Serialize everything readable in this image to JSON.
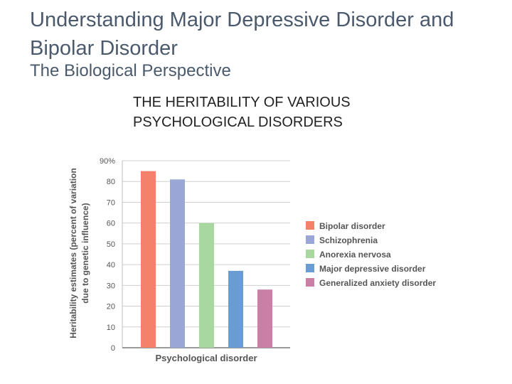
{
  "slide": {
    "title": "Understanding Major Depressive Disorder and Bipolar Disorder",
    "subtitle": "The Biological Perspective"
  },
  "chart_data": {
    "type": "bar",
    "title": "THE HERITABILITY OF VARIOUS PSYCHOLOGICAL DISORDERS",
    "xlabel": "Psychological disorder",
    "ylabel_lines": [
      "Heritability estimates (percent of variation",
      "due to genetic influence)"
    ],
    "ylim": [
      0,
      90
    ],
    "yticks": [
      "0",
      "10",
      "20",
      "30",
      "40",
      "50",
      "60",
      "70",
      "80",
      "90%"
    ],
    "grid": true,
    "legend_position": "right",
    "categories": [
      "Bipolar disorder",
      "Schizophrenia",
      "Anorexia nervosa",
      "Major depressive disorder",
      "Generalized anxiety disorder"
    ],
    "values": [
      85,
      81,
      60,
      37,
      28
    ],
    "colors": [
      "#f4826a",
      "#9aa6d6",
      "#a9d7a0",
      "#6a9cd4",
      "#c97fa6"
    ]
  }
}
